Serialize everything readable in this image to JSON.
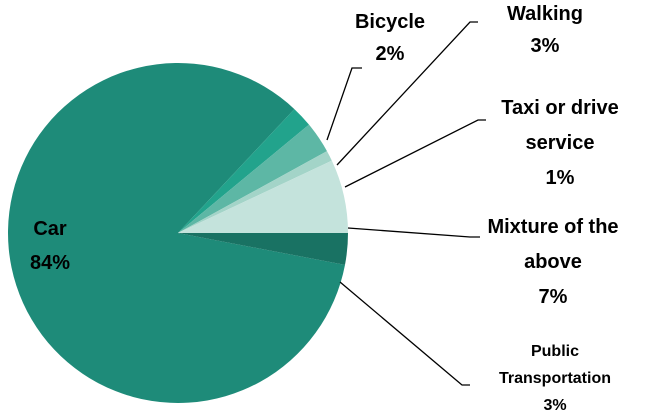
{
  "chart_data": {
    "type": "pie",
    "categories": [
      "Car",
      "Bicycle",
      "Walking",
      "Taxi or drive service",
      "Mixture of the above",
      "Public Transportation"
    ],
    "values": [
      84,
      2,
      3,
      1,
      7,
      3
    ],
    "value_labels": [
      "84%",
      "2%",
      "3%",
      "1%",
      "7%",
      "3%"
    ],
    "colors": [
      "#1e8b79",
      "#22a38c",
      "#5db7a5",
      "#a3d4c8",
      "#c4e3dc",
      "#197263"
    ]
  }
}
